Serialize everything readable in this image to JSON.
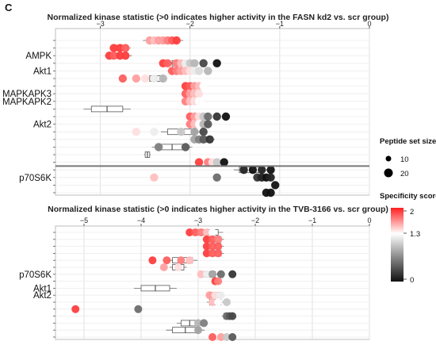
{
  "panel_label": "C",
  "chart_data": [
    {
      "type": "scatter",
      "title": "Normalized kinase statistic (>0 indicates higher activity in the FASN kd2 vs. scr group)",
      "xlabel": "",
      "ylabel": "",
      "xlim": [
        -3.5,
        0
      ],
      "xticks": [
        -3,
        -2,
        -1,
        0
      ],
      "xtick_labels": [
        "−3",
        "−2",
        "−1",
        "0"
      ],
      "grid": true,
      "rows": [
        {
          "label": "",
          "box": [
            -2.45,
            -2.15
          ],
          "points": [
            [
              -2.45,
              1.6
            ],
            [
              -2.4,
              1.5
            ],
            [
              -2.35,
              1.6
            ],
            [
              -2.3,
              1.6
            ],
            [
              -2.25,
              1.7
            ],
            [
              -2.2,
              1.8
            ],
            [
              -2.15,
              1.9
            ]
          ]
        },
        {
          "label": "",
          "box": [
            -2.85,
            -2.7
          ],
          "points": [
            [
              -2.85,
              1.9
            ],
            [
              -2.78,
              1.9
            ],
            [
              -2.72,
              1.8
            ]
          ]
        },
        {
          "label": "AMPK",
          "box": [
            -2.9,
            -2.7
          ],
          "points": [
            [
              -2.9,
              1.9
            ],
            [
              -2.85,
              1.8
            ],
            [
              -2.78,
              1.9
            ],
            [
              -2.72,
              1.9
            ]
          ]
        },
        {
          "label": "",
          "box": [
            -2.2,
            -2.0
          ],
          "points": [
            [
              -2.3,
              1.9
            ],
            [
              -2.25,
              1.8
            ],
            [
              -2.15,
              1.7
            ],
            [
              -2.1,
              1.5
            ],
            [
              -2.05,
              1.2
            ],
            [
              -2.0,
              1.0
            ],
            [
              -1.95,
              0.9
            ],
            [
              -1.85,
              0.3
            ],
            [
              -1.7,
              0.0
            ]
          ]
        },
        {
          "label": "Akt1",
          "box": [
            -2.2,
            -2.0
          ],
          "points": [
            [
              -2.2,
              1.8
            ],
            [
              -2.15,
              1.7
            ],
            [
              -2.1,
              1.6
            ],
            [
              -2.05,
              1.5
            ],
            [
              -2.0,
              1.4
            ],
            [
              -1.95,
              1.2
            ],
            [
              -1.9,
              1.1
            ],
            [
              -1.8,
              0.9
            ]
          ]
        },
        {
          "label": "",
          "box": [
            -2.45,
            -2.3
          ],
          "points": [
            [
              -2.75,
              1.8
            ],
            [
              -2.6,
              1.6
            ],
            [
              -2.5,
              1.4
            ],
            [
              -2.4,
              1.2
            ],
            [
              -2.3,
              0.9
            ]
          ]
        },
        {
          "label": "",
          "box": [
            -2.0,
            -1.9
          ],
          "points": [
            [
              -2.05,
              1.9
            ],
            [
              -2.0,
              1.8
            ],
            [
              -1.95,
              1.6
            ],
            [
              -1.9,
              1.5
            ],
            [
              -1.85,
              1.3
            ]
          ]
        },
        {
          "label": "MAPKAPK3",
          "box": [
            -2.0,
            -1.9
          ],
          "points": [
            [
              -2.05,
              1.8
            ],
            [
              -2.0,
              1.6
            ],
            [
              -1.95,
              1.5
            ],
            [
              -1.9,
              1.4
            ]
          ]
        },
        {
          "label": "MAPKAPK2",
          "box": [
            -2.0,
            -1.9
          ],
          "points": [
            [
              -2.05,
              1.7
            ],
            [
              -2.0,
              1.5
            ],
            [
              -1.95,
              1.4
            ],
            [
              -1.9,
              1.3
            ]
          ]
        },
        {
          "label": "",
          "box": [
            -3.1,
            -2.75
          ],
          "points": []
        },
        {
          "label": "",
          "box": [
            -1.9,
            -1.8
          ],
          "points": [
            [
              -2.0,
              1.8
            ],
            [
              -1.95,
              1.6
            ],
            [
              -1.9,
              1.4
            ],
            [
              -1.85,
              1.0
            ],
            [
              -1.8,
              0.5
            ],
            [
              -1.7,
              0.2
            ],
            [
              -1.6,
              0.0
            ]
          ]
        },
        {
          "label": "Akt2",
          "box": [
            -1.95,
            -1.8
          ],
          "points": [
            [
              -2.0,
              1.7
            ],
            [
              -1.95,
              1.5
            ],
            [
              -1.9,
              1.3
            ],
            [
              -1.85,
              0.9
            ],
            [
              -1.8,
              0.4
            ]
          ]
        },
        {
          "label": "",
          "box": [
            -2.25,
            -1.95
          ],
          "points": [
            [
              -2.6,
              1.4
            ],
            [
              -2.4,
              1.2
            ],
            [
              -2.1,
              1.0
            ],
            [
              -1.95,
              0.8
            ],
            [
              -1.85,
              0.3
            ]
          ]
        },
        {
          "label": "",
          "box": [
            -1.85,
            -1.75
          ],
          "points": [
            [
              -1.95,
              0.8
            ],
            [
              -1.9,
              0.6
            ],
            [
              -1.85,
              0.4
            ],
            [
              -1.78,
              0.2
            ]
          ]
        },
        {
          "label": "",
          "box": [
            -2.35,
            -2.05
          ],
          "points": [
            [
              -2.35,
              0.6
            ],
            [
              -2.05,
              0.4
            ]
          ]
        },
        {
          "label": "",
          "box": [
            -2.5,
            -2.45
          ],
          "points": []
        },
        {
          "label": "",
          "box": [],
          "points": [
            [
              -1.9,
              1.9
            ],
            [
              -1.8,
              1.7
            ],
            [
              -1.75,
              1.4
            ],
            [
              -1.7,
              1.0
            ],
            [
              -1.62,
              0.0
            ]
          ]
        },
        {
          "label": "",
          "box": [
            -1.45,
            -1.2
          ],
          "points": [
            [
              -1.4,
              0.1
            ],
            [
              -1.3,
              0.0
            ],
            [
              -1.2,
              0.1
            ],
            [
              -1.1,
              0.0
            ]
          ]
        },
        {
          "label": "p70S6K",
          "box": [
            -1.25,
            -1.1
          ],
          "points": [
            [
              -2.4,
              1.5
            ],
            [
              -1.7,
              0.5
            ],
            [
              -1.25,
              0.2
            ],
            [
              -1.2,
              0.1
            ],
            [
              -1.15,
              0.0
            ],
            [
              -1.1,
              0.1
            ]
          ]
        },
        {
          "label": "",
          "box": [],
          "points": [
            [
              -1.05,
              0.0
            ]
          ]
        },
        {
          "label": "",
          "box": [],
          "points": [
            [
              -1.15,
              0.0
            ],
            [
              -1.1,
              0.0
            ]
          ]
        }
      ]
    },
    {
      "type": "scatter",
      "title": "Normalized kinase statistic (>0 indicates higher activity in the TVB-3166 vs. scr group)",
      "xlabel": "",
      "ylabel": "",
      "xlim": [
        -5.5,
        0
      ],
      "xticks": [
        -5,
        -4,
        -3,
        -2,
        -1,
        0
      ],
      "xtick_labels": [
        "−5",
        "−4",
        "−3",
        "−2",
        "−1",
        "0"
      ],
      "grid": true,
      "rows": [
        {
          "label": "",
          "box": [
            -3.0,
            -2.65
          ],
          "points": [
            [
              -3.15,
              1.9
            ],
            [
              -3.05,
              1.8
            ],
            [
              -2.95,
              1.7
            ],
            [
              -2.85,
              1.5
            ],
            [
              -2.75,
              1.3
            ]
          ]
        },
        {
          "label": "",
          "box": [
            -2.8,
            -2.6
          ],
          "points": [
            [
              -2.85,
              1.9
            ],
            [
              -2.75,
              1.8
            ],
            [
              -2.65,
              1.7
            ]
          ]
        },
        {
          "label": "",
          "box": [
            -2.8,
            -2.6
          ],
          "points": [
            [
              -2.85,
              1.9
            ],
            [
              -2.75,
              1.8
            ],
            [
              -2.65,
              1.8
            ]
          ]
        },
        {
          "label": "",
          "box": [
            -2.8,
            -2.6
          ],
          "points": [
            [
              -2.85,
              1.9
            ],
            [
              -2.75,
              1.8
            ],
            [
              -2.65,
              1.8
            ]
          ]
        },
        {
          "label": "",
          "box": [
            -3.45,
            -3.1
          ],
          "points": [
            [
              -3.8,
              1.9
            ],
            [
              -3.55,
              1.8
            ],
            [
              -3.3,
              1.7
            ],
            [
              -3.15,
              1.5
            ]
          ]
        },
        {
          "label": "",
          "box": [
            -3.45,
            -3.25
          ],
          "points": [
            [
              -3.6,
              1.6
            ],
            [
              -3.35,
              1.4
            ]
          ]
        },
        {
          "label": "p70S6K",
          "box": [
            -2.9,
            -2.7
          ],
          "points": [
            [
              -3.05,
              1.3
            ],
            [
              -2.95,
              1.5
            ],
            [
              -2.85,
              1.2
            ],
            [
              -2.75,
              0.8
            ],
            [
              -2.6,
              0.5
            ],
            [
              -2.4,
              0.2
            ]
          ]
        },
        {
          "label": "",
          "box": [],
          "points": [
            [
              -2.7,
              1.9
            ],
            [
              -2.65,
              1.7
            ]
          ]
        },
        {
          "label": "Akt1",
          "box": [
            -4.0,
            -3.5
          ],
          "points": []
        },
        {
          "label": "Akt2",
          "box": [
            -2.8,
            -2.6
          ],
          "points": [
            [
              -2.8,
              1.6
            ],
            [
              -2.7,
              1.4
            ],
            [
              -2.6,
              1.2
            ]
          ]
        },
        {
          "label": "",
          "box": [
            -2.8,
            -2.6
          ],
          "points": [
            [
              -2.75,
              1.5
            ],
            [
              -2.65,
              1.3
            ],
            [
              -2.5,
              1.0
            ]
          ]
        },
        {
          "label": "",
          "box": [],
          "points": [
            [
              -5.15,
              1.9
            ],
            [
              -4.05,
              0.5
            ]
          ]
        },
        {
          "label": "",
          "box": [
            -2.55,
            -2.4
          ],
          "points": [
            [
              -2.5,
              0.5
            ],
            [
              -2.45,
              0.4
            ],
            [
              -2.4,
              0.3
            ]
          ]
        },
        {
          "label": "",
          "box": [
            -3.3,
            -3.0
          ],
          "points": [
            [
              -3.0,
              0.9
            ],
            [
              -2.9,
              0.6
            ]
          ]
        },
        {
          "label": "",
          "box": [
            -3.45,
            -3.0
          ],
          "points": [
            [
              -3.0,
              0.8
            ]
          ]
        },
        {
          "label": "",
          "box": [],
          "points": [
            [
              -2.75,
              1.8
            ],
            [
              -2.6,
              1.6
            ],
            [
              -2.5,
              1.0
            ],
            [
              -2.4,
              0.4
            ]
          ]
        }
      ]
    }
  ],
  "legend": {
    "size_title": "Peptide set size",
    "size_items": [
      {
        "label": "10",
        "value": 10
      },
      {
        "label": "20",
        "value": 20
      }
    ],
    "color_title": "Specificity score",
    "color_ticks": [
      "2",
      "1.3",
      "0"
    ],
    "color_values": [
      2,
      1.3,
      0
    ],
    "colors": [
      "#ff1e1e",
      "#ffffff",
      "#111111"
    ]
  }
}
